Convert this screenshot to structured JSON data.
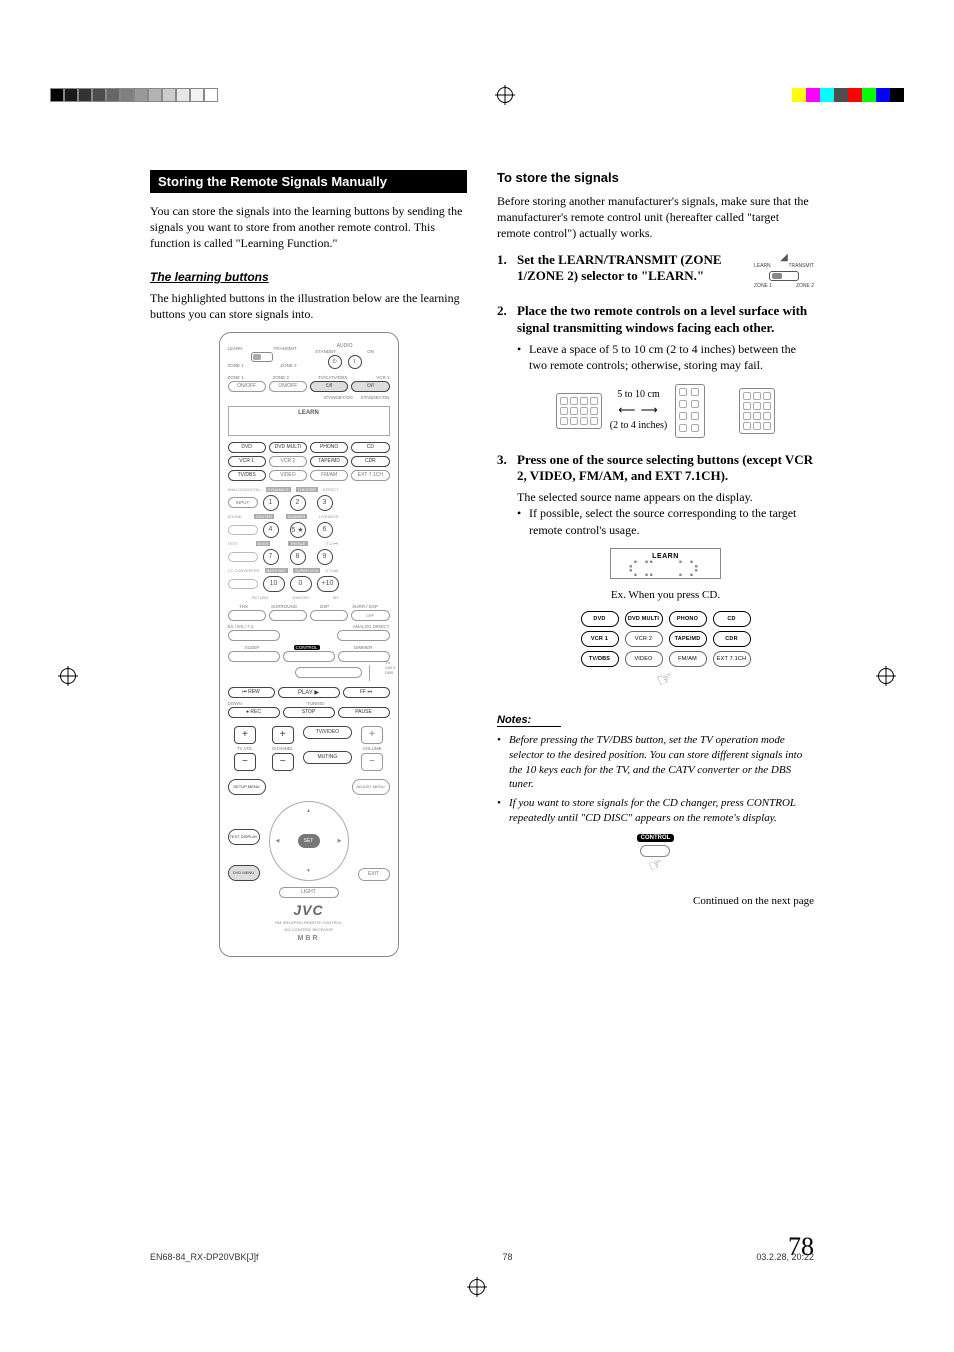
{
  "colorbar_top_left_grays": [
    "#000000",
    "#1a1a1a",
    "#333333",
    "#4d4d4d",
    "#666666",
    "#808080",
    "#999999",
    "#b3b3b3",
    "#cccccc",
    "#e6e6e6",
    "#f2f2f2",
    "#ffffff"
  ],
  "colorbar_top_right_colors": [
    "#ffff00",
    "#ff00ff",
    "#00ffff",
    "#4d4d4d",
    "#ff0000",
    "#00ff00",
    "#0000ff",
    "#000000"
  ],
  "left": {
    "section_title": "Storing the Remote Signals Manually",
    "intro": "You can store the signals into the learning buttons by sending the signals you want to store from another remote control. This function is called \"Learning Function.\"",
    "learning_heading": "The learning buttons",
    "learning_text": "The highlighted buttons in the illustration below are the learning buttons you can store signals into."
  },
  "remote": {
    "top_labels": {
      "learn": "LEARN",
      "transmit": "TRANSMIT",
      "zone1": "ZONE 1",
      "zone2": "ZONE 2",
      "audio": "AUDIO",
      "standby": "STANDBY",
      "on": "ON"
    },
    "row2_labels": {
      "zone1": "ZONE 1",
      "zone2": "ZONE 2",
      "tvcatv": "TV/CATV/DBS",
      "vcr1": "VCR 1"
    },
    "row2_btns": {
      "onoff1": "ON/OFF",
      "onoff2": "ON/OFF",
      "sb1": "⏻/I",
      "sb2": "⏻/I"
    },
    "row2_sub": {
      "sb": "STANDBY/ON"
    },
    "learn_panel": "LEARN",
    "sources": {
      "r1": [
        "DVD",
        "DVD MULTI",
        "PHONO",
        "CD"
      ],
      "r2": [
        "VCR 1",
        "VCR 2",
        "TAPE/MD",
        "CDR"
      ],
      "r3": [
        "TV/DBS",
        "VIDEO",
        "FM/AM",
        "EXT 7.1CH"
      ]
    },
    "numpad": {
      "left_labels": [
        "ANALOG/DIGITAL",
        "SOUND",
        "TEST",
        "CC CONVERTER"
      ],
      "top_labels": [
        "DYNAMICS",
        "THEATER",
        "EFFECT"
      ],
      "mid_labels": [
        "CENTER",
        "SUBWFR",
        "LIVENESS"
      ],
      "row3_labels": [
        "BASS",
        "TREBLE",
        "(T-2  ⏮)"
      ],
      "row4_labels": [
        "BASS BST",
        "SUPER VCA",
        "(T-3  ⏭)"
      ],
      "bottom_labels": [
        "RETURN",
        "100/0/SS",
        "M3"
      ],
      "input": "INPUT",
      "nums": [
        "1",
        "2",
        "3",
        "4",
        "5 ★",
        "6",
        "7",
        "8",
        "9",
        "10",
        "0",
        "+10"
      ]
    },
    "mid": {
      "thx": "THX",
      "surround": "SURROUND",
      "dsp": "DSP",
      "surrdsp": "SURR / DSP",
      "ex": "EX / ES / 7.1",
      "analog_direct": "ANALOG DIRECT",
      "off": "OFF",
      "sleep": "SLEEP",
      "control": "CONTROL",
      "dimmer": "DIMMER",
      "tv": "TV",
      "catv": "CATV",
      "dbs": "DBS"
    },
    "transport": {
      "rew": "⏮ REW",
      "play": "PLAY ▶",
      "ff": "FF ⏭",
      "down": "DOWN",
      "tuning": "TUNING",
      "rec": "● REC",
      "stop": "STOP",
      "pause": "PAUSE"
    },
    "vol": {
      "tvvol": "TV VOL",
      "channel": "CHANNEL",
      "tvvideo": "TV/VIDEO",
      "volume": "VOLUME",
      "muting": "MUTING"
    },
    "menu": {
      "setup": "SETUP MENU",
      "adjust": "ADJUST MENU",
      "text": "TEXT DISPLAY",
      "dvd": "DVD MENU",
      "set": "SET",
      "exit": "EXIT",
      "light": "LIGHT"
    },
    "brand": "JVC",
    "model": "RM-SRXDP20J    REMOTE CONTROL",
    "model2": "A/V  CONTROL  RECEIVER",
    "mbr": "MBR"
  },
  "right": {
    "store_heading": "To store the signals",
    "store_intro": "Before storing another manufacturer's signals, make sure that the manufacturer's remote control unit (hereafter called \"target remote control\") actually works.",
    "steps": [
      {
        "title": "Set the LEARN/TRANSMIT (ZONE 1/ZONE 2) selector to \"LEARN.\"",
        "body": "",
        "bullets": []
      },
      {
        "title": "Place the two remote controls on a level surface with signal transmitting windows facing each other.",
        "body": "",
        "bullets": [
          "Leave a space of 5 to 10 cm (2 to 4 inches) between the two remote controls; otherwise, storing may fail."
        ]
      },
      {
        "title": "Press one of the source selecting buttons (except VCR 2, VIDEO, FM/AM, and EXT 7.1CH).",
        "body": "The selected source name appears on the display.",
        "bullets": [
          "If possible, select the source corresponding to the target remote control's usage."
        ]
      }
    ],
    "switch_labels": {
      "learn": "LEARN",
      "transmit": "TRANSMIT",
      "zone1": "ZONE 1",
      "zone2": "ZONE 2"
    },
    "distance": {
      "cm": "5 to 10 cm",
      "in": "(2 to 4 inches)"
    },
    "learn_box_label": "LEARN",
    "learn_box_text": "C D",
    "example_caption": "Ex. When you press CD.",
    "src_grid": {
      "r1": [
        {
          "t": "DVD",
          "hl": true
        },
        {
          "t": "DVD MULTI",
          "hl": true
        },
        {
          "t": "PHONO",
          "hl": true
        },
        {
          "t": "CD",
          "hl": true
        }
      ],
      "r2": [
        {
          "t": "VCR 1",
          "hl": true
        },
        {
          "t": "VCR 2",
          "hl": false
        },
        {
          "t": "TAPE/MD",
          "hl": true
        },
        {
          "t": "CDR",
          "hl": true
        }
      ],
      "r3": [
        {
          "t": "TV/DBS",
          "hl": true
        },
        {
          "t": "VIDEO",
          "hl": false
        },
        {
          "t": "FM/AM",
          "hl": false
        },
        {
          "t": "EXT 7.1CH",
          "hl": false
        }
      ]
    },
    "notes_heading": "Notes:",
    "notes": [
      "Before pressing the TV/DBS button, set the TV operation mode selector to the desired position. You can store different signals into the 10 keys each for the TV, and the CATV converter or the DBS tuner.",
      "If you want to store signals for the CD changer, press CONTROL repeatedly until \"CD DISC\" appears on the remote's display."
    ],
    "control_label": "CONTROL",
    "continued": "Continued on the next page"
  },
  "page_number": "78",
  "footer": {
    "file": "EN68-84_RX-DP20VBK[J]f",
    "page": "78",
    "timestamp": "03.2.28, 20:22"
  }
}
